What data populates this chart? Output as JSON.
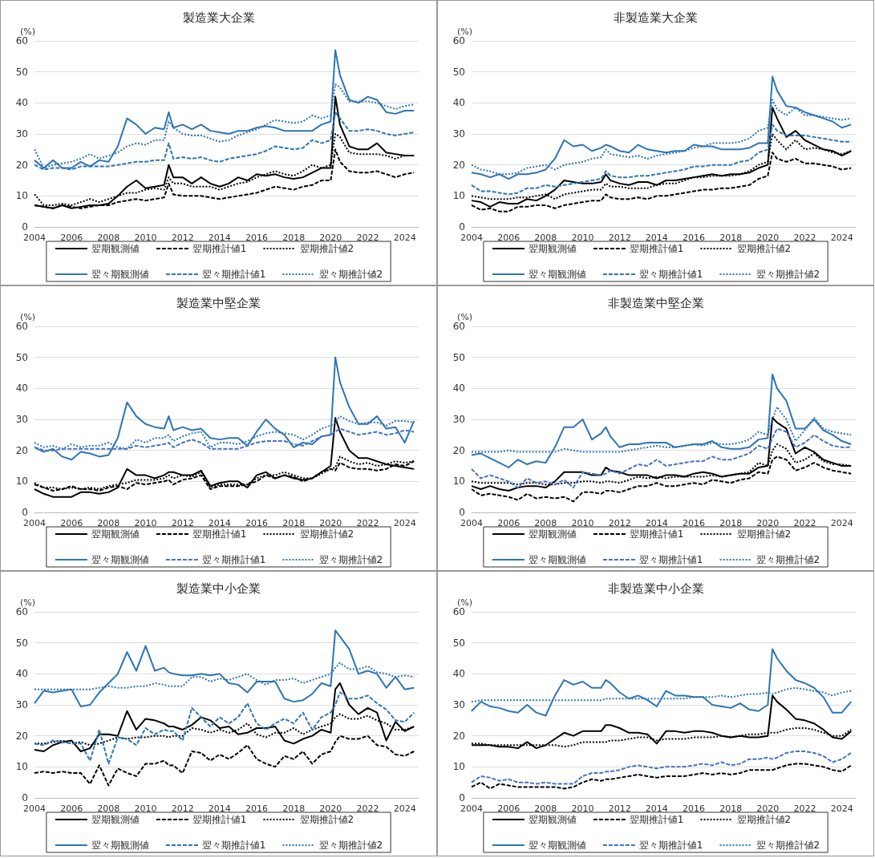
{
  "chart_data": [
    {
      "type": "line",
      "title": "製造業大企業",
      "ylabel": "(%)",
      "xlim": [
        2004,
        2024.75
      ],
      "xticks": [
        2004,
        2006,
        2008,
        2010,
        2012,
        2014,
        2016,
        2018,
        2020,
        2022,
        2024
      ],
      "ylim": [
        0,
        60
      ],
      "yticks": [
        0,
        10,
        20,
        30,
        40,
        50,
        60
      ],
      "grid": "y",
      "legend": "bottom",
      "marker": "none",
      "x": [
        2004,
        2004.5,
        2005,
        2005.5,
        2006,
        2006.5,
        2007,
        2007.5,
        2008,
        2008.5,
        2009,
        2009.5,
        2010,
        2010.5,
        2011,
        2011.25,
        2011.5,
        2012,
        2012.5,
        2013,
        2013.5,
        2014,
        2014.5,
        2015,
        2015.5,
        2016,
        2016.5,
        2017,
        2017.5,
        2018,
        2018.5,
        2019,
        2019.5,
        2020,
        2020.25,
        2020.5,
        2021,
        2021.5,
        2022,
        2022.5,
        2023,
        2023.5,
        2024,
        2024.5
      ],
      "series": [
        {
          "name": "翌期観測値",
          "color": "#000000",
          "line_style": "solid",
          "values": [
            7,
            6.5,
            6,
            7,
            6,
            6.5,
            7,
            7,
            7.5,
            10,
            13,
            15,
            12.5,
            13,
            13.5,
            20,
            16,
            16,
            14,
            16,
            14,
            13,
            14,
            16,
            15,
            17,
            16.5,
            17,
            16,
            15.5,
            16,
            17.5,
            19,
            19,
            42,
            33,
            26,
            25,
            25,
            27,
            24,
            23.5,
            23,
            23
          ]
        },
        {
          "name": "翌期推計値1",
          "color": "#000000",
          "line_style": "dashed",
          "values": [
            7,
            6.5,
            6,
            7,
            6.5,
            6,
            6.5,
            7,
            7,
            8,
            8.5,
            9,
            8.5,
            9,
            9.5,
            14,
            10.5,
            10,
            10,
            10,
            9.5,
            9,
            9.5,
            10,
            10.5,
            11,
            12,
            13,
            12.5,
            12,
            13,
            13.5,
            15,
            15,
            25,
            21,
            18,
            17.5,
            17.5,
            18,
            17,
            16,
            17,
            17.5
          ]
        },
        {
          "name": "翌期推計値2",
          "color": "#000000",
          "line_style": "dotted",
          "values": [
            10.5,
            7,
            7,
            7.5,
            7,
            8,
            9,
            8,
            9,
            10,
            11,
            11,
            12,
            12.5,
            12,
            16,
            14,
            14,
            13,
            13,
            13,
            12,
            13,
            14,
            14.5,
            16,
            17,
            18,
            17,
            16.5,
            18,
            20,
            19,
            20,
            30,
            29,
            24,
            23.5,
            23.5,
            23.5,
            23,
            22,
            23,
            23
          ]
        },
        {
          "name": "翌々期観測値",
          "color": "#2e75b6",
          "line_style": "solid",
          "values": [
            21.5,
            19,
            21.5,
            19,
            19,
            21,
            19.5,
            21.5,
            21,
            26,
            35,
            33,
            30,
            32,
            31.5,
            37,
            32,
            33,
            31.5,
            33,
            31,
            30.5,
            30,
            31,
            31,
            32,
            32.5,
            32,
            31,
            31,
            31,
            31,
            33,
            34,
            57,
            49,
            41,
            40,
            42,
            41,
            37,
            36.5,
            37.5,
            37.5
          ]
        },
        {
          "name": "翌々期推計値1",
          "color": "#2e75b6",
          "line_style": "dashed",
          "values": [
            20,
            18.5,
            19,
            19,
            18.5,
            19.5,
            19.5,
            19.5,
            19.5,
            20,
            20.5,
            21,
            21,
            21.5,
            21.5,
            27,
            22,
            22.5,
            22,
            22.5,
            21.5,
            21,
            22,
            22.5,
            23,
            23.5,
            24.5,
            26,
            25.5,
            25,
            25.5,
            28,
            27,
            28,
            37,
            35,
            31,
            31,
            31.5,
            31,
            30,
            29.5,
            30,
            30.5
          ]
        },
        {
          "name": "翌々期推計値2",
          "color": "#2e75b6",
          "line_style": "dotted",
          "values": [
            25,
            19,
            20,
            20.5,
            21,
            22,
            23.5,
            22,
            23,
            24,
            26,
            27,
            26.5,
            28,
            28,
            34,
            32,
            30,
            29.5,
            29.5,
            28.5,
            27.5,
            28,
            29.5,
            30.5,
            31.5,
            33,
            34.5,
            34,
            33.5,
            34,
            36,
            35,
            36,
            46,
            45,
            40.5,
            40.5,
            40.5,
            40,
            39,
            38,
            39,
            39.5
          ]
        }
      ]
    },
    {
      "type": "line",
      "title": "非製造業大企業",
      "ylabel": "(%)",
      "xlim": [
        2004,
        2024.75
      ],
      "xticks": [
        2004,
        2006,
        2008,
        2010,
        2012,
        2014,
        2016,
        2018,
        2020,
        2022,
        2024
      ],
      "ylim": [
        0,
        60
      ],
      "yticks": [
        0,
        10,
        20,
        30,
        40,
        50,
        60
      ],
      "grid": "y",
      "legend": "bottom",
      "marker": "none",
      "x": [
        2004,
        2004.5,
        2005,
        2005.5,
        2006,
        2006.5,
        2007,
        2007.5,
        2008,
        2008.5,
        2009,
        2009.5,
        2010,
        2010.5,
        2011,
        2011.25,
        2011.5,
        2012,
        2012.5,
        2013,
        2013.5,
        2014,
        2014.5,
        2015,
        2015.5,
        2016,
        2016.5,
        2017,
        2017.5,
        2018,
        2018.5,
        2019,
        2019.5,
        2020,
        2020.25,
        2020.5,
        2021,
        2021.5,
        2022,
        2022.5,
        2023,
        2023.5,
        2024,
        2024.5
      ],
      "series": [
        {
          "name": "翌期観測値",
          "color": "#000000",
          "line_style": "solid",
          "values": [
            8.5,
            8,
            6.5,
            8,
            7.5,
            7.5,
            9,
            8.5,
            10,
            12,
            15,
            14.5,
            14,
            14,
            14.5,
            17,
            15,
            14,
            13.5,
            14.5,
            14.5,
            13.5,
            15,
            15,
            15.5,
            16,
            16.5,
            17,
            16.5,
            17,
            17,
            17.5,
            19,
            20,
            38.5,
            35,
            29,
            31,
            28,
            26.5,
            25,
            24.5,
            23,
            24.5
          ]
        },
        {
          "name": "翌期推計値1",
          "color": "#000000",
          "line_style": "dashed",
          "values": [
            7,
            5.5,
            6,
            5,
            5,
            6.5,
            6.5,
            7,
            7,
            6,
            7,
            7.5,
            8,
            8.5,
            8.5,
            10.5,
            9.5,
            9,
            9,
            9.5,
            9,
            10,
            10,
            10.5,
            11,
            11.5,
            12,
            12,
            12.5,
            12.5,
            13,
            13.5,
            15.5,
            16.5,
            24,
            22,
            21,
            22,
            20.5,
            20.5,
            20,
            19.5,
            18.5,
            19
          ]
        },
        {
          "name": "翌期推計値2",
          "color": "#000000",
          "line_style": "dotted",
          "values": [
            10,
            9.5,
            9,
            9,
            9,
            9.5,
            9.5,
            10,
            10.5,
            9,
            10.5,
            11,
            11.5,
            12,
            12,
            14,
            13,
            13,
            12.5,
            12.5,
            12.5,
            13.5,
            14,
            14,
            15,
            16,
            16,
            16.5,
            16.5,
            16.5,
            17,
            18,
            20,
            21,
            30,
            28,
            25,
            28,
            25,
            25.5,
            25,
            24,
            23.5,
            24.5
          ]
        },
        {
          "name": "翌々期観測値",
          "color": "#2e75b6",
          "line_style": "solid",
          "values": [
            17.5,
            17,
            16,
            17,
            15.5,
            17,
            17,
            17.5,
            18.5,
            22,
            28,
            26,
            26.5,
            24.5,
            25.5,
            26.5,
            26,
            24.5,
            24,
            26.5,
            25,
            24.5,
            24,
            24.5,
            24.5,
            26.5,
            26,
            26,
            25,
            25,
            25,
            25.5,
            27,
            27,
            48.5,
            44,
            39,
            38.5,
            37,
            36,
            35,
            34,
            32,
            33
          ]
        },
        {
          "name": "翌々期推計値1",
          "color": "#2e75b6",
          "line_style": "dashed",
          "values": [
            13.5,
            11.5,
            11.5,
            11,
            10.5,
            11,
            12.5,
            12.5,
            13.5,
            13,
            13.5,
            14,
            14.5,
            15,
            15.5,
            18,
            16.5,
            16,
            16,
            16.5,
            16.5,
            17,
            17.5,
            18,
            18.5,
            19.5,
            19.5,
            20,
            20,
            20,
            21,
            21.5,
            24,
            25,
            33,
            31,
            29.5,
            29.5,
            29.5,
            29,
            28.5,
            28,
            27.5,
            27.5
          ]
        },
        {
          "name": "翌々期推計値2",
          "color": "#2e75b6",
          "line_style": "dotted",
          "values": [
            20,
            18.5,
            18,
            17,
            17,
            17.5,
            19,
            19.5,
            20,
            18.5,
            20,
            20.5,
            21,
            22,
            22.5,
            25,
            23.5,
            23,
            22.5,
            23,
            22,
            23,
            23.5,
            24,
            24.5,
            25.5,
            26,
            27,
            27,
            27,
            27.5,
            28.5,
            31,
            32,
            41,
            38,
            36,
            38.5,
            36,
            36,
            35.5,
            35,
            34.5,
            35
          ]
        }
      ]
    },
    {
      "type": "line",
      "title": "製造業中堅企業",
      "ylabel": "(%)",
      "xlim": [
        2004,
        2024.75
      ],
      "xticks": [
        2004,
        2006,
        2008,
        2010,
        2012,
        2014,
        2016,
        2018,
        2020,
        2022,
        2024
      ],
      "ylim": [
        0,
        60
      ],
      "yticks": [
        0,
        10,
        20,
        30,
        40,
        50,
        60
      ],
      "grid": "y",
      "legend": "bottom",
      "marker": "none",
      "x": [
        2004,
        2004.5,
        2005,
        2005.5,
        2006,
        2006.5,
        2007,
        2007.5,
        2008,
        2008.5,
        2009,
        2009.5,
        2010,
        2010.5,
        2011,
        2011.25,
        2011.5,
        2012,
        2012.5,
        2013,
        2013.5,
        2014,
        2014.5,
        2015,
        2015.5,
        2016,
        2016.5,
        2017,
        2017.5,
        2018,
        2018.5,
        2019,
        2019.5,
        2020,
        2020.25,
        2020.5,
        2021,
        2021.5,
        2022,
        2022.5,
        2023,
        2023.5,
        2024,
        2024.5
      ],
      "series": [
        {
          "name": "翌期観測値",
          "color": "#000000",
          "line_style": "solid",
          "values": [
            7.5,
            6,
            5,
            5,
            5,
            6.5,
            6.5,
            6,
            6.5,
            8,
            14,
            12,
            12,
            11,
            12,
            13,
            13,
            12,
            12,
            13.5,
            8.5,
            9.5,
            10,
            10,
            8,
            12,
            13,
            11,
            12,
            11,
            10.5,
            11,
            13,
            15,
            30.5,
            26,
            20,
            17.5,
            17.5,
            16.5,
            15.5,
            15,
            14.5,
            14
          ]
        },
        {
          "name": "翌期推計値1",
          "color": "#000000",
          "line_style": "dashed",
          "values": [
            9,
            8,
            7,
            7.5,
            8.5,
            7.5,
            7.5,
            7,
            8,
            8.5,
            7.5,
            9.5,
            9,
            9.5,
            10,
            10.5,
            9,
            10.5,
            11,
            12,
            7.5,
            8.5,
            8.5,
            8.5,
            9,
            10,
            12,
            11,
            12,
            11.5,
            10,
            11,
            13,
            14,
            13.5,
            16,
            14.5,
            14,
            14,
            13.5,
            14,
            15.5,
            15,
            16.5
          ]
        },
        {
          "name": "翌期推計値2",
          "color": "#000000",
          "line_style": "dotted",
          "values": [
            9.5,
            8,
            8,
            7.5,
            8,
            7.5,
            8,
            7.5,
            8.5,
            9,
            9.5,
            10.5,
            10.5,
            10.5,
            11,
            12,
            11,
            12,
            11.5,
            13,
            8,
            9,
            9,
            9,
            9,
            11,
            12,
            12,
            13,
            12,
            11,
            11,
            12.5,
            14,
            14.5,
            18,
            16.5,
            15.5,
            16,
            15,
            15.5,
            16.5,
            16,
            16.5
          ]
        },
        {
          "name": "翌々期観測値",
          "color": "#2e75b6",
          "line_style": "solid",
          "values": [
            21,
            19.5,
            20.5,
            18,
            17,
            19.5,
            19,
            18,
            18.5,
            24,
            35.5,
            31,
            28.5,
            27.5,
            27,
            31,
            26.5,
            27.5,
            26.5,
            27,
            24,
            23.5,
            24,
            24,
            21.5,
            26,
            30,
            27,
            25,
            21,
            22.5,
            22,
            24.5,
            25,
            50,
            42,
            34,
            28.5,
            28.5,
            31,
            27,
            27.5,
            22.5,
            29.5
          ]
        },
        {
          "name": "翌々期推計値1",
          "color": "#4472c4",
          "line_style": "dashed",
          "values": [
            21,
            20,
            20,
            20.5,
            20.5,
            20.5,
            20.5,
            20.5,
            20.5,
            20.5,
            20.5,
            21.5,
            21,
            21.5,
            22,
            22.5,
            21,
            22.5,
            23.5,
            22.5,
            20.5,
            20.5,
            20.5,
            20.5,
            21.5,
            22.5,
            23,
            23,
            23,
            22,
            21.5,
            23,
            24.5,
            25,
            26,
            27,
            26,
            25,
            25.5,
            26,
            25,
            25.5,
            26.5,
            26
          ]
        },
        {
          "name": "翌々期推計値2",
          "color": "#2e75b6",
          "line_style": "dotted",
          "values": [
            22.5,
            21,
            21.5,
            20.5,
            22,
            21,
            21.5,
            21.5,
            22.5,
            21,
            20.5,
            23.5,
            22.5,
            24,
            24,
            25,
            23,
            24.5,
            25.5,
            26,
            21,
            22.5,
            22.5,
            22,
            23,
            24.5,
            25.5,
            26,
            25.5,
            25,
            23.5,
            25,
            27,
            28,
            29,
            31,
            29.5,
            28.5,
            29,
            29,
            28,
            29.5,
            29.5,
            29
          ]
        }
      ]
    },
    {
      "type": "line",
      "title": "非製造業中堅企業",
      "ylabel": "(%)",
      "xlim": [
        2004,
        2024.75
      ],
      "xticks": [
        2004,
        2006,
        2008,
        2010,
        2012,
        2014,
        2016,
        2018,
        2020,
        2022,
        2024
      ],
      "ylim": [
        0,
        60
      ],
      "yticks": [
        0,
        10,
        20,
        30,
        40,
        50,
        60
      ],
      "grid": "y",
      "legend": "bottom",
      "marker": "none",
      "x": [
        2004,
        2004.5,
        2005,
        2005.5,
        2006,
        2006.5,
        2007,
        2007.5,
        2008,
        2008.5,
        2009,
        2009.5,
        2010,
        2010.5,
        2011,
        2011.25,
        2011.5,
        2012,
        2012.5,
        2013,
        2013.5,
        2014,
        2014.5,
        2015,
        2015.5,
        2016,
        2016.5,
        2017,
        2017.5,
        2018,
        2018.5,
        2019,
        2019.5,
        2020,
        2020.25,
        2020.5,
        2021,
        2021.5,
        2022,
        2022.5,
        2023,
        2023.5,
        2024,
        2024.5
      ],
      "series": [
        {
          "name": "翌期観測値",
          "color": "#000000",
          "line_style": "solid",
          "values": [
            8.5,
            7.5,
            8.5,
            7.5,
            7,
            8,
            8.5,
            8.5,
            8,
            10,
            13,
            13,
            13,
            12,
            12,
            14.5,
            13.5,
            13,
            12,
            12,
            12,
            11,
            12,
            12,
            11.5,
            12.5,
            13,
            12.5,
            11.5,
            12,
            12.5,
            12.5,
            14.5,
            15,
            30.5,
            29,
            27,
            19,
            21,
            19.5,
            17,
            16,
            15,
            15
          ]
        },
        {
          "name": "翌期推計値1",
          "color": "#000000",
          "line_style": "dashed",
          "values": [
            7.5,
            5.5,
            6,
            5.5,
            5,
            4,
            6,
            4.5,
            5,
            4.5,
            5,
            3.5,
            6.5,
            6.5,
            6,
            7,
            7,
            6.5,
            7.5,
            8.5,
            8.5,
            9.5,
            8.5,
            8.5,
            9,
            9.5,
            9,
            10.5,
            10,
            9.5,
            10.5,
            11,
            13,
            12.5,
            17,
            18,
            17,
            13.5,
            14.5,
            16,
            14.5,
            13.5,
            13,
            12.5
          ]
        },
        {
          "name": "翌期推計値2",
          "color": "#000000",
          "line_style": "dotted",
          "values": [
            10,
            9.5,
            9.5,
            9.5,
            9.5,
            9,
            9.5,
            9.5,
            9,
            9,
            9.5,
            9.5,
            10,
            10,
            9.5,
            10,
            10,
            9.5,
            10.5,
            11.5,
            11,
            11.5,
            11,
            11.5,
            11.5,
            11.5,
            11.5,
            12,
            11.5,
            12,
            12.5,
            13,
            16,
            15,
            20,
            22,
            20.5,
            16,
            17,
            19,
            16.5,
            15.5,
            15.5,
            15
          ]
        },
        {
          "name": "翌々期観測値",
          "color": "#2e75b6",
          "line_style": "solid",
          "values": [
            18.5,
            19,
            17.5,
            16,
            14.5,
            17,
            15.5,
            16.5,
            16,
            21,
            27.5,
            27.5,
            30,
            23.5,
            25.5,
            27.5,
            24.5,
            21,
            22,
            22,
            22.5,
            22.5,
            22.5,
            21,
            21.5,
            22,
            22,
            23,
            21,
            20.5,
            20.5,
            21,
            23.5,
            24,
            44.5,
            40,
            36,
            27,
            27,
            30,
            26.5,
            25,
            23,
            22
          ]
        },
        {
          "name": "翌々期推計値1",
          "color": "#4472c4",
          "line_style": "dashed",
          "values": [
            14,
            11,
            12,
            11,
            10,
            8,
            11,
            9.5,
            10,
            9,
            10.5,
            8,
            13,
            12.5,
            12,
            12.5,
            13.5,
            12.5,
            14,
            15.5,
            15,
            17,
            15,
            15.5,
            16,
            16.5,
            16.5,
            18,
            17,
            17,
            18,
            19,
            21.5,
            20.5,
            24,
            27,
            26,
            21,
            22.5,
            25,
            23,
            21.5,
            21,
            21
          ]
        },
        {
          "name": "翌々期推計値2",
          "color": "#2e75b6",
          "line_style": "dotted",
          "values": [
            19.5,
            19.5,
            19.5,
            19.5,
            20,
            19.5,
            19.5,
            19.5,
            19.5,
            19.5,
            20.5,
            20,
            19.5,
            19.5,
            19.5,
            19.5,
            19.5,
            19.5,
            20,
            20.5,
            21,
            21.5,
            21,
            21,
            21.5,
            22,
            21.5,
            22.5,
            22,
            22,
            22.5,
            23.5,
            26,
            25,
            30,
            34,
            30,
            23,
            26.5,
            30.5,
            27,
            26,
            25.5,
            25
          ]
        }
      ]
    },
    {
      "type": "line",
      "title": "製造業中小企業",
      "ylabel": "(%)",
      "xlim": [
        2004,
        2024.75
      ],
      "xticks": [
        2004,
        2006,
        2008,
        2010,
        2012,
        2014,
        2016,
        2018,
        2020,
        2022,
        2024
      ],
      "ylim": [
        0,
        60
      ],
      "yticks": [
        0,
        10,
        20,
        30,
        40,
        50,
        60
      ],
      "grid": "y",
      "legend": "bottom",
      "marker": "none",
      "x": [
        2004,
        2004.5,
        2005,
        2005.5,
        2006,
        2006.5,
        2007,
        2007.5,
        2008,
        2008.5,
        2009,
        2009.5,
        2010,
        2010.5,
        2011,
        2011.25,
        2011.5,
        2012,
        2012.5,
        2013,
        2013.5,
        2014,
        2014.5,
        2015,
        2015.5,
        2016,
        2016.5,
        2017,
        2017.5,
        2018,
        2018.5,
        2019,
        2019.5,
        2020,
        2020.25,
        2020.5,
        2021,
        2021.5,
        2022,
        2022.5,
        2023,
        2023.5,
        2024,
        2024.5
      ],
      "series": [
        {
          "name": "翌期観測値",
          "color": "#000000",
          "line_style": "solid",
          "values": [
            15.5,
            15,
            17,
            18,
            18.5,
            15,
            16,
            20.5,
            20.5,
            20,
            28,
            22,
            25.5,
            25,
            24,
            23,
            23,
            22,
            23.5,
            26,
            25,
            22.5,
            23,
            20.5,
            21,
            22.5,
            22.5,
            23,
            18.5,
            17.5,
            19,
            20,
            22,
            21,
            35,
            37,
            30,
            27,
            29,
            27.5,
            18.5,
            24.5,
            21.5,
            23
          ]
        },
        {
          "name": "翌期推計値1",
          "color": "#000000",
          "line_style": "dashed",
          "values": [
            8,
            8.5,
            8,
            8.5,
            8,
            8,
            4.5,
            10.5,
            4,
            9.5,
            8,
            7,
            11,
            11,
            12,
            10.5,
            10.5,
            8,
            15,
            14.5,
            12,
            14,
            12.5,
            14.5,
            17,
            12.5,
            11,
            10,
            13.5,
            12.5,
            15,
            11,
            14,
            15,
            18,
            20,
            19,
            19,
            20,
            17,
            16.5,
            14,
            13.5,
            15
          ]
        },
        {
          "name": "翌期推計値2",
          "color": "#000000",
          "line_style": "dotted",
          "values": [
            17.5,
            17.5,
            18,
            18.5,
            17.5,
            18,
            17,
            17.5,
            18.5,
            19.5,
            19,
            19.5,
            19.5,
            20,
            20,
            19.5,
            20,
            20,
            22.5,
            22,
            21,
            22,
            21,
            22,
            24,
            20.5,
            19.5,
            21,
            21,
            22.5,
            20.5,
            22,
            23,
            24,
            26,
            27,
            25.5,
            25.5,
            26.5,
            25,
            24,
            22,
            22,
            23
          ]
        },
        {
          "name": "翌々期観測値",
          "color": "#2e75b6",
          "line_style": "solid",
          "values": [
            30.5,
            34.5,
            34,
            34.5,
            35,
            29.5,
            30,
            34,
            37,
            40,
            47,
            41,
            49,
            41,
            42,
            40.5,
            40,
            39.5,
            39.5,
            40,
            39.5,
            40,
            37,
            36.5,
            34,
            37.5,
            37.5,
            37.5,
            32,
            31,
            31.5,
            33.5,
            37,
            36,
            54,
            52,
            48,
            40,
            41,
            40,
            35.5,
            39,
            35,
            35.5
          ]
        },
        {
          "name": "翌々期推計値1",
          "color": "#2e75b6",
          "line_style": "dashed",
          "values": [
            17.5,
            17,
            18.5,
            18,
            17.5,
            17.5,
            12,
            22,
            11,
            19.5,
            19,
            17,
            22.5,
            20.5,
            22,
            21.5,
            21.5,
            18.5,
            29,
            26,
            23,
            26,
            24,
            26,
            30.5,
            24,
            22,
            24,
            25.5,
            24,
            27.5,
            22,
            26,
            27.5,
            30,
            34,
            32,
            32,
            33,
            30.5,
            28.5,
            25,
            24.5,
            27.5
          ]
        },
        {
          "name": "翌々期推計値2",
          "color": "#2e75b6",
          "line_style": "dotted",
          "values": [
            35,
            35,
            35,
            35,
            35,
            35,
            35,
            35.5,
            36,
            35.5,
            35.5,
            36,
            36,
            37,
            36.5,
            36,
            36,
            36,
            39,
            39,
            37.5,
            38.5,
            38,
            39,
            40,
            38,
            36.5,
            38,
            38,
            38.5,
            37,
            38,
            39,
            40,
            42,
            43.5,
            41.5,
            41.5,
            42.5,
            40.5,
            40,
            39,
            39.5,
            39
          ]
        }
      ]
    },
    {
      "type": "line",
      "title": "非製造業中小企業",
      "ylabel": "(%)",
      "xlim": [
        2004,
        2024.75
      ],
      "xticks": [
        2004,
        2006,
        2008,
        2010,
        2012,
        2014,
        2016,
        2018,
        2020,
        2022,
        2024
      ],
      "ylim": [
        0,
        60
      ],
      "yticks": [
        0,
        10,
        20,
        30,
        40,
        50,
        60
      ],
      "grid": "y",
      "legend": "bottom",
      "marker": "none",
      "x": [
        2004,
        2004.5,
        2005,
        2005.5,
        2006,
        2006.5,
        2007,
        2007.5,
        2008,
        2008.5,
        2009,
        2009.5,
        2010,
        2010.5,
        2011,
        2011.25,
        2011.5,
        2012,
        2012.5,
        2013,
        2013.5,
        2014,
        2014.5,
        2015,
        2015.5,
        2016,
        2016.5,
        2017,
        2017.5,
        2018,
        2018.5,
        2019,
        2019.5,
        2020,
        2020.25,
        2020.5,
        2021,
        2021.5,
        2022,
        2022.5,
        2023,
        2023.5,
        2024,
        2024.5
      ],
      "series": [
        {
          "name": "翌期観測値",
          "color": "#000000",
          "line_style": "solid",
          "values": [
            17,
            17,
            17,
            16.5,
            16.5,
            16,
            18,
            16,
            17,
            19,
            21,
            20,
            21.5,
            21.5,
            21.5,
            23.5,
            23.5,
            22.5,
            21,
            21,
            20.5,
            17.5,
            21.5,
            21.5,
            21,
            21.5,
            21.5,
            21,
            20,
            19.5,
            20,
            19.5,
            19.5,
            20,
            33,
            31,
            28.5,
            25.5,
            25,
            24,
            22,
            19.5,
            19,
            21.5
          ]
        },
        {
          "name": "翌期推計値1",
          "color": "#000000",
          "line_style": "dashed",
          "values": [
            3.5,
            5,
            3,
            4.5,
            4,
            3.5,
            3.5,
            3.5,
            3.5,
            3.5,
            3,
            3.5,
            5,
            6,
            5.5,
            6,
            6,
            6.5,
            7,
            7.5,
            7,
            6.5,
            7,
            7,
            7,
            7.5,
            8,
            7.5,
            8,
            7.5,
            8,
            9,
            9,
            9,
            9,
            9.5,
            10.5,
            11,
            11,
            10.5,
            10,
            9,
            8.5,
            10.5
          ]
        },
        {
          "name": "翌期推計値2",
          "color": "#000000",
          "line_style": "dotted",
          "values": [
            17.5,
            17.5,
            17,
            17,
            17,
            17,
            17,
            17,
            17,
            17,
            16.5,
            17,
            18,
            18,
            18,
            18,
            18.5,
            18.5,
            19,
            19.5,
            19.5,
            18.5,
            19,
            19,
            19,
            19.5,
            19.5,
            19.5,
            20,
            19.5,
            20,
            20.5,
            20.5,
            21,
            21,
            21,
            22,
            22.5,
            22.5,
            22,
            21,
            20,
            20,
            22
          ]
        },
        {
          "name": "翌々期観測値",
          "color": "#2e75b6",
          "line_style": "solid",
          "values": [
            28,
            31,
            29.5,
            29,
            28,
            27.5,
            30,
            27.5,
            26.5,
            33,
            38,
            36.5,
            37.5,
            35.5,
            35.5,
            38,
            37,
            34,
            32,
            33,
            31.5,
            29.5,
            34.5,
            33,
            33,
            32.5,
            32.5,
            30,
            29.5,
            29,
            30.5,
            28.5,
            28,
            30,
            48,
            45,
            41,
            38,
            37,
            35.5,
            32.5,
            27.5,
            27.5,
            31
          ]
        },
        {
          "name": "翌々期推計値1",
          "color": "#4472c4",
          "line_style": "dashed",
          "values": [
            5,
            7,
            6.5,
            5.5,
            6,
            5,
            5,
            4.5,
            5,
            4.5,
            4.5,
            4.5,
            7,
            8,
            8,
            8.5,
            8.5,
            9,
            10,
            10.5,
            10,
            9.5,
            10,
            10,
            10,
            10.5,
            11,
            10.5,
            11.5,
            10.5,
            11,
            12.5,
            12.5,
            13,
            12.5,
            13,
            14.5,
            15,
            15,
            14.5,
            13.5,
            11.5,
            12.5,
            14.5
          ]
        },
        {
          "name": "翌々期推計値2",
          "color": "#2e75b6",
          "line_style": "dotted",
          "values": [
            31,
            31.5,
            31.5,
            31.5,
            31.5,
            31.5,
            31.5,
            31.5,
            31.5,
            31.5,
            31.5,
            31.5,
            31.5,
            31.5,
            31.5,
            32,
            32,
            32,
            32,
            32,
            32,
            32,
            32,
            32,
            32,
            32.5,
            32.5,
            32.5,
            33,
            32.5,
            33,
            33.5,
            33.5,
            34,
            33.5,
            34,
            35,
            35.5,
            35,
            34.5,
            34,
            33,
            34,
            34.5
          ]
        }
      ]
    }
  ]
}
